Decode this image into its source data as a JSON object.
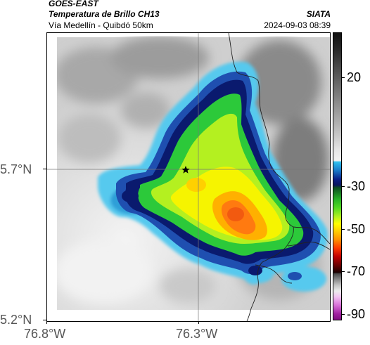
{
  "header": {
    "satellite": "GOES-EAST",
    "product": "Temperatura de Brillo CH13",
    "region": "Vía Medellín - Quibdó 50km",
    "org": "SIATA",
    "datetime": "2024-09-03 08:39"
  },
  "map": {
    "lat_labels": [
      "5.7°N",
      "5.2°N"
    ],
    "lon_labels": [
      "76.8°W",
      "76.3°W"
    ],
    "marker_icon": "star-icon",
    "border_color": "#222222"
  },
  "colorbar": {
    "labels": [
      "20",
      "-30",
      "-50",
      "-70",
      "-90"
    ],
    "colors": {
      "warm_top": "#111111",
      "gray_mid": "#9a9a9a",
      "gray_light": "#e4e4e4",
      "cyan": "#2fb5e6",
      "navy": "#0b1f78",
      "green": "#28c832",
      "yellow": "#ffff00",
      "orange": "#ff8800",
      "red": "#e8341c",
      "darkred": "#5a0000",
      "magenta": "#c040c0"
    }
  }
}
